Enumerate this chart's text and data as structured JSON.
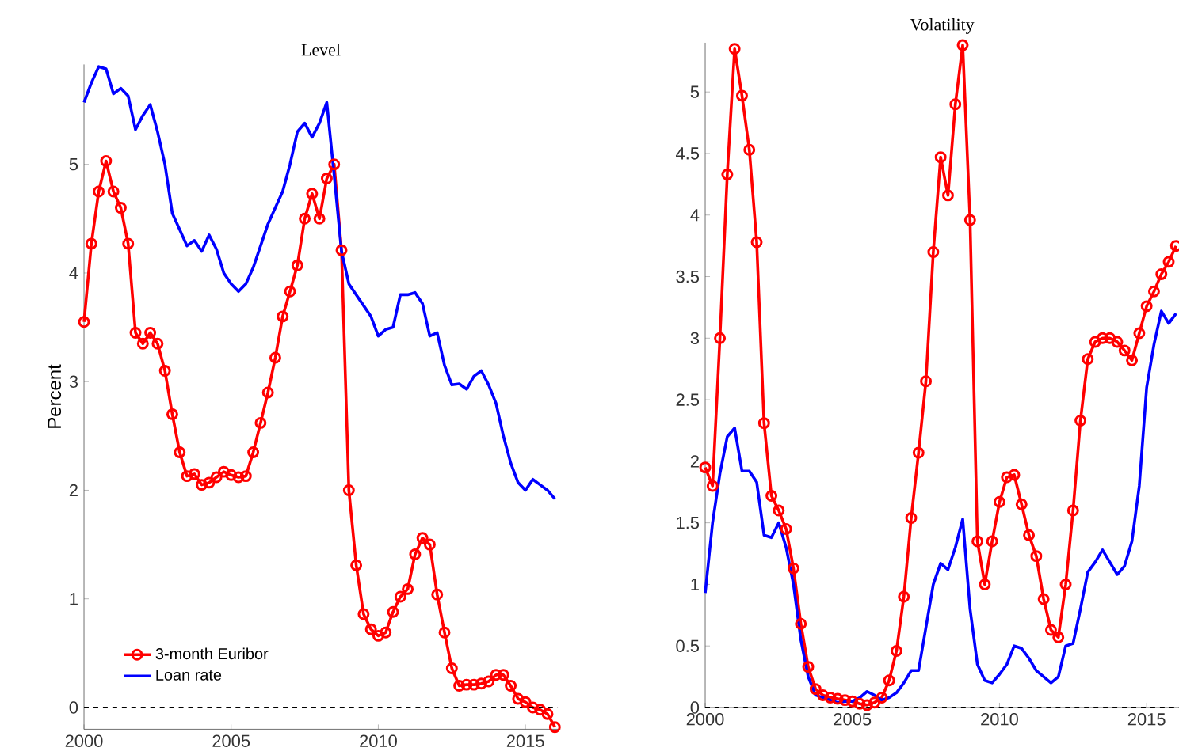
{
  "chart_data": [
    {
      "type": "line",
      "title": "Level",
      "ylabel": "Percent",
      "x": [
        2000,
        2000.25,
        2000.5,
        2000.75,
        2001,
        2001.25,
        2001.5,
        2001.75,
        2002,
        2002.25,
        2002.5,
        2002.75,
        2003,
        2003.25,
        2003.5,
        2003.75,
        2004,
        2004.25,
        2004.5,
        2004.75,
        2005,
        2005.25,
        2005.5,
        2005.75,
        2006,
        2006.25,
        2006.5,
        2006.75,
        2007,
        2007.25,
        2007.5,
        2007.75,
        2008,
        2008.25,
        2008.5,
        2008.75,
        2009,
        2009.25,
        2009.5,
        2009.75,
        2010,
        2010.25,
        2010.5,
        2010.75,
        2011,
        2011.25,
        2011.5,
        2011.75,
        2012,
        2012.25,
        2012.5,
        2012.75,
        2013,
        2013.25,
        2013.5,
        2013.75,
        2014,
        2014.25,
        2014.5,
        2014.75,
        2015,
        2015.25,
        2015.5,
        2015.75,
        2016
      ],
      "series": [
        {
          "name": "3-month Euribor",
          "color": "#ff0000",
          "marker": "circle",
          "values": [
            3.55,
            4.27,
            4.75,
            5.03,
            4.75,
            4.6,
            4.27,
            3.45,
            3.35,
            3.45,
            3.35,
            3.1,
            2.7,
            2.35,
            2.13,
            2.15,
            2.05,
            2.07,
            2.12,
            2.17,
            2.14,
            2.12,
            2.13,
            2.35,
            2.62,
            2.9,
            3.22,
            3.6,
            3.83,
            4.07,
            4.5,
            4.73,
            4.5,
            4.87,
            5.0,
            4.21,
            2.0,
            1.31,
            0.86,
            0.72,
            0.66,
            0.69,
            0.88,
            1.02,
            1.09,
            1.41,
            1.56,
            1.5,
            1.04,
            0.69,
            0.36,
            0.2,
            0.21,
            0.21,
            0.22,
            0.24,
            0.3,
            0.3,
            0.2,
            0.08,
            0.05,
            0.0,
            -0.02,
            -0.06,
            -0.18
          ]
        },
        {
          "name": "Loan rate",
          "color": "#0000ff",
          "marker": "none",
          "values": [
            5.57,
            5.75,
            5.9,
            5.88,
            5.65,
            5.7,
            5.63,
            5.32,
            5.45,
            5.55,
            5.3,
            5.0,
            4.55,
            4.4,
            4.25,
            4.3,
            4.2,
            4.35,
            4.22,
            4.0,
            3.9,
            3.83,
            3.9,
            4.05,
            4.25,
            4.45,
            4.6,
            4.75,
            5.0,
            5.3,
            5.38,
            5.25,
            5.38,
            5.57,
            4.9,
            4.2,
            3.9,
            3.8,
            3.7,
            3.6,
            3.42,
            3.48,
            3.5,
            3.8,
            3.8,
            3.82,
            3.72,
            3.42,
            3.45,
            3.15,
            2.97,
            2.98,
            2.93,
            3.05,
            3.1,
            2.97,
            2.8,
            2.5,
            2.25,
            2.07,
            2.0,
            2.1,
            2.05,
            2.0,
            1.92
          ]
        }
      ],
      "xlim": [
        2000,
        2016.1
      ],
      "xticks": [
        2000,
        2005,
        2010,
        2015
      ],
      "ylim": [
        -0.2,
        5.92
      ],
      "yticks": [
        0,
        1,
        2,
        3,
        4,
        5
      ],
      "ref_lines": [
        {
          "axis": "y",
          "value": 0,
          "color": "#000000",
          "line_style": "dashed"
        }
      ],
      "line_style": "solid",
      "legend": "bottom left",
      "grid": false
    },
    {
      "type": "line",
      "title": "Volatility",
      "x": [
        2000,
        2000.25,
        2000.5,
        2000.75,
        2001,
        2001.25,
        2001.5,
        2001.75,
        2002,
        2002.25,
        2002.5,
        2002.75,
        2003,
        2003.25,
        2003.5,
        2003.75,
        2004,
        2004.25,
        2004.5,
        2004.75,
        2005,
        2005.25,
        2005.5,
        2005.75,
        2006,
        2006.25,
        2006.5,
        2006.75,
        2007,
        2007.25,
        2007.5,
        2007.75,
        2008,
        2008.25,
        2008.5,
        2008.75,
        2009,
        2009.25,
        2009.5,
        2009.75,
        2010,
        2010.25,
        2010.5,
        2010.75,
        2011,
        2011.25,
        2011.5,
        2011.75,
        2012,
        2012.25,
        2012.5,
        2012.75,
        2013,
        2013.25,
        2013.5,
        2013.75,
        2014,
        2014.25,
        2014.5,
        2014.75,
        2015,
        2015.25,
        2015.5,
        2015.75,
        2016
      ],
      "series": [
        {
          "color": "#ff0000",
          "marker": "circle",
          "values": [
            1.95,
            1.8,
            3.0,
            4.33,
            5.35,
            4.97,
            4.53,
            3.78,
            2.31,
            1.72,
            1.6,
            1.45,
            1.13,
            0.68,
            0.33,
            0.15,
            0.1,
            0.08,
            0.07,
            0.06,
            0.05,
            0.03,
            0.02,
            0.04,
            0.08,
            0.22,
            0.46,
            0.9,
            1.54,
            2.07,
            2.65,
            3.7,
            4.47,
            4.16,
            4.9,
            5.38,
            3.96,
            1.35,
            1.0,
            1.35,
            1.67,
            1.87,
            1.89,
            1.65,
            1.4,
            1.23,
            0.88,
            0.63,
            0.57,
            1.0,
            1.6,
            2.33,
            2.83,
            2.97,
            3.0,
            3.0,
            2.97,
            2.9,
            2.82,
            3.04,
            3.26,
            3.38,
            3.52,
            3.62,
            3.75
          ]
        },
        {
          "color": "#0000ff",
          "marker": "none",
          "values": [
            0.93,
            1.5,
            1.9,
            2.2,
            2.27,
            1.92,
            1.92,
            1.83,
            1.4,
            1.38,
            1.5,
            1.3,
            1.0,
            0.55,
            0.25,
            0.1,
            0.08,
            0.06,
            0.04,
            0.05,
            0.05,
            0.08,
            0.13,
            0.1,
            0.06,
            0.08,
            0.12,
            0.2,
            0.3,
            0.3,
            0.65,
            1.0,
            1.17,
            1.12,
            1.3,
            1.53,
            0.8,
            0.35,
            0.22,
            0.2,
            0.27,
            0.35,
            0.5,
            0.48,
            0.4,
            0.3,
            0.25,
            0.2,
            0.25,
            0.5,
            0.52,
            0.8,
            1.1,
            1.18,
            1.28,
            1.18,
            1.08,
            1.15,
            1.35,
            1.8,
            2.6,
            2.95,
            3.22,
            3.12,
            3.2
          ]
        }
      ],
      "xlim": [
        2000,
        2016.1
      ],
      "xticks": [
        2000,
        2005,
        2010,
        2015
      ],
      "ylim": [
        0,
        5.4
      ],
      "yticks": [
        0,
        0.5,
        1,
        1.5,
        2,
        2.5,
        3,
        3.5,
        4,
        4.5,
        5
      ],
      "ref_lines": [
        {
          "axis": "y",
          "value": 0,
          "color": "#000000",
          "line_style": "dashed"
        }
      ],
      "line_style": "solid",
      "legend": false,
      "grid": false
    }
  ]
}
